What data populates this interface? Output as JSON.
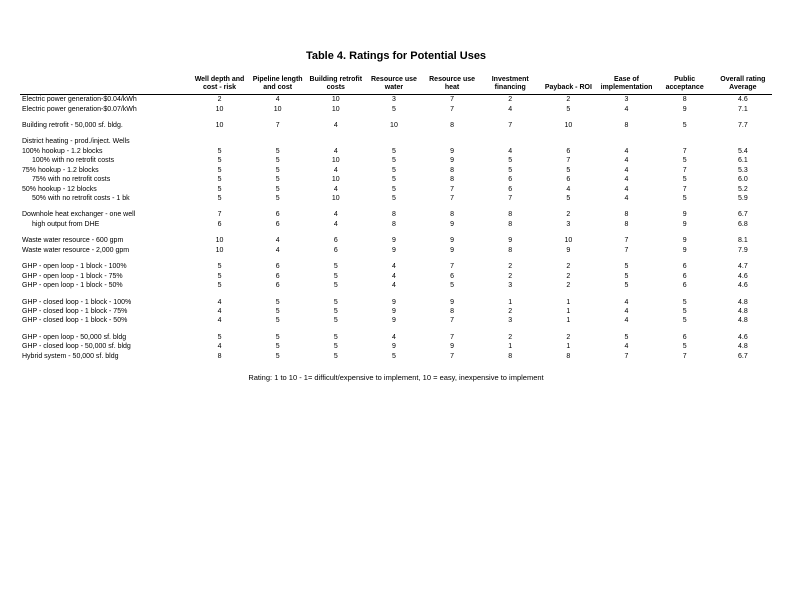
{
  "title": "Table 4.  Ratings for Potential Uses",
  "footnote": "Rating:  1 to 10 - 1= difficult/expensive to implement, 10 = easy, inexpensive to implement",
  "columns": [
    "Well depth and cost - risk",
    "Pipeline length and cost",
    "Building retrofit costs",
    "Resource use water",
    "Resource use heat",
    "Investment financing",
    "Payback - ROI",
    "Ease of implementation",
    "Public acceptance",
    "Overall rating Average"
  ],
  "rows": [
    {
      "type": "hline"
    },
    {
      "label": "Electric power generation-$0.04/kWh",
      "vals": [
        "2",
        "4",
        "10",
        "3",
        "7",
        "2",
        "2",
        "3",
        "8",
        "4.6"
      ]
    },
    {
      "label": "Electric power generation-$0.07/kWh",
      "vals": [
        "10",
        "10",
        "10",
        "5",
        "7",
        "4",
        "5",
        "4",
        "9",
        "7.1"
      ]
    },
    {
      "type": "spacer"
    },
    {
      "label": "Building retrofit - 50,000 sf. bldg.",
      "vals": [
        "10",
        "7",
        "4",
        "10",
        "8",
        "7",
        "10",
        "8",
        "5",
        "7.7"
      ]
    },
    {
      "type": "spacer"
    },
    {
      "label": "District heating - prod./inject. Wells",
      "vals": [
        "",
        "",
        "",
        "",
        "",
        "",
        "",
        "",
        "",
        ""
      ]
    },
    {
      "label": "100% hookup - 1.2  blocks",
      "vals": [
        "5",
        "5",
        "4",
        "5",
        "9",
        "4",
        "6",
        "4",
        "7",
        "5.4"
      ]
    },
    {
      "label": "100% with no retrofit costs",
      "indent": true,
      "vals": [
        "5",
        "5",
        "10",
        "5",
        "9",
        "5",
        "7",
        "4",
        "5",
        "6.1"
      ]
    },
    {
      "label": "75% hookup - 1.2 blocks",
      "vals": [
        "5",
        "5",
        "4",
        "5",
        "8",
        "5",
        "5",
        "4",
        "7",
        "5.3"
      ]
    },
    {
      "label": "75% with no retrofit costs",
      "indent": true,
      "vals": [
        "5",
        "5",
        "10",
        "5",
        "8",
        "6",
        "6",
        "4",
        "5",
        "6.0"
      ]
    },
    {
      "label": "50% hookup - 12 blocks",
      "vals": [
        "5",
        "5",
        "4",
        "5",
        "7",
        "6",
        "4",
        "4",
        "7",
        "5.2"
      ]
    },
    {
      "label": "50% with no retrofit costs - 1 bk",
      "indent": true,
      "vals": [
        "5",
        "5",
        "10",
        "5",
        "7",
        "7",
        "5",
        "4",
        "5",
        "5.9"
      ]
    },
    {
      "type": "spacer"
    },
    {
      "label": "Downhole heat exchanger - one well",
      "vals": [
        "7",
        "6",
        "4",
        "8",
        "8",
        "8",
        "2",
        "8",
        "9",
        "6.7"
      ]
    },
    {
      "label": "high output from DHE",
      "indent": true,
      "vals": [
        "6",
        "6",
        "4",
        "8",
        "9",
        "8",
        "3",
        "8",
        "9",
        "6.8"
      ]
    },
    {
      "type": "spacer"
    },
    {
      "label": "Waste water resource - 600 gpm",
      "vals": [
        "10",
        "4",
        "6",
        "9",
        "9",
        "9",
        "10",
        "7",
        "9",
        "8.1"
      ]
    },
    {
      "label": "Waste water resource - 2,000 gpm",
      "vals": [
        "10",
        "4",
        "6",
        "9",
        "9",
        "8",
        "9",
        "7",
        "9",
        "7.9"
      ]
    },
    {
      "type": "spacer"
    },
    {
      "label": "GHP - open loop - 1 block - 100%",
      "vals": [
        "5",
        "6",
        "5",
        "4",
        "7",
        "2",
        "2",
        "5",
        "6",
        "4.7"
      ]
    },
    {
      "label": "GHP - open loop - 1 block - 75%",
      "vals": [
        "5",
        "6",
        "5",
        "4",
        "6",
        "2",
        "2",
        "5",
        "6",
        "4.6"
      ]
    },
    {
      "label": "GHP - open loop - 1 block - 50%",
      "vals": [
        "5",
        "6",
        "5",
        "4",
        "5",
        "3",
        "2",
        "5",
        "6",
        "4.6"
      ]
    },
    {
      "type": "spacer"
    },
    {
      "label": "GHP - closed loop - 1 block - 100%",
      "vals": [
        "4",
        "5",
        "5",
        "9",
        "9",
        "1",
        "1",
        "4",
        "5",
        "4.8"
      ]
    },
    {
      "label": "GHP - closed loop - 1 block - 75%",
      "vals": [
        "4",
        "5",
        "5",
        "9",
        "8",
        "2",
        "1",
        "4",
        "5",
        "4.8"
      ]
    },
    {
      "label": "GHP - closed loop - 1 block - 50%",
      "vals": [
        "4",
        "5",
        "5",
        "9",
        "7",
        "3",
        "1",
        "4",
        "5",
        "4.8"
      ]
    },
    {
      "type": "spacer"
    },
    {
      "label": "GHP - open loop - 50,000 sf. bldg",
      "vals": [
        "5",
        "5",
        "5",
        "4",
        "7",
        "2",
        "2",
        "5",
        "6",
        "4.6"
      ]
    },
    {
      "label": "GHP - closed loop - 50,000 sf. bldg",
      "vals": [
        "4",
        "5",
        "5",
        "9",
        "9",
        "1",
        "1",
        "4",
        "5",
        "4.8"
      ]
    },
    {
      "label": "Hybrid system - 50,000 sf. bldg",
      "vals": [
        "8",
        "5",
        "5",
        "5",
        "7",
        "8",
        "8",
        "7",
        "7",
        "6.7"
      ]
    }
  ]
}
